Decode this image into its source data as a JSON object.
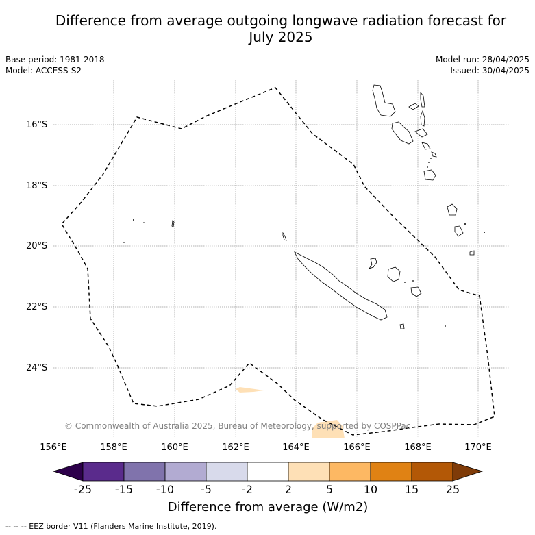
{
  "title_line1": "Difference from average outgoing longwave radiation forecast for",
  "title_line2": "July 2025",
  "base_period": "Base period: 1981-2018",
  "model": "Model: ACCESS-S2",
  "model_run": "Model run: 28/04/2025",
  "issued": "Issued: 30/04/2025",
  "copyright": "© Commonwealth of Australia 2025, Bureau of Meteorology, supported by COSPPac",
  "footer": "--  --  -- EEZ border V11 (Flanders Marine Institute, 2019).",
  "map": {
    "lon_range": [
      156,
      171
    ],
    "lat_range": [
      -26,
      -14.5
    ],
    "lon_ticks": [
      "156°E",
      "158°E",
      "160°E",
      "162°E",
      "164°E",
      "166°E",
      "168°E",
      "170°E"
    ],
    "lat_ticks": [
      "16°S",
      "18°S",
      "20°S",
      "22°S",
      "24°S"
    ],
    "gridlines": true
  },
  "colorbar": {
    "title": "Difference from average (W/m2)",
    "labels": [
      "-25",
      "-15",
      "-10",
      "-5",
      "-2",
      "2",
      "5",
      "10",
      "15",
      "25"
    ],
    "colors": [
      "#5a2b8c",
      "#8073ac",
      "#b2abd2",
      "#d8daeb",
      "#ffffff",
      "#fee0b6",
      "#fdb863",
      "#e08214",
      "#b35806"
    ],
    "under_color": "#2d004b",
    "over_color": "#7f3b08"
  }
}
